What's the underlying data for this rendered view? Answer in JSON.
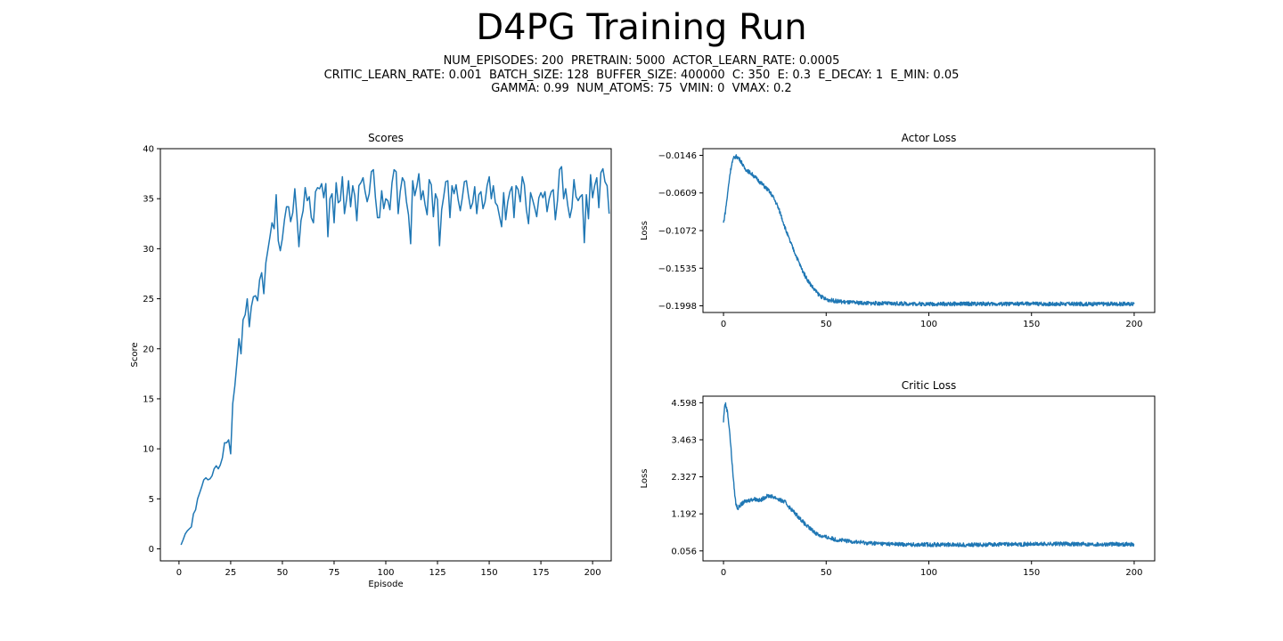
{
  "figure": {
    "title": "D4PG Training Run",
    "subtitle_lines": [
      "NUM_EPISODES: 200  PRETRAIN: 5000  ACTOR_LEARN_RATE: 0.0005",
      "CRITIC_LEARN_RATE: 0.001  BATCH_SIZE: 128  BUFFER_SIZE: 400000  C: 350  E: 0.3  E_DECAY: 1  E_MIN: 0.05",
      "GAMMA: 0.99  NUM_ATOMS: 75  VMIN: 0  VMAX: 0.2"
    ],
    "line_color": "#1f77b4"
  },
  "chart_data": [
    {
      "id": "scores",
      "type": "line",
      "title": "Scores",
      "xlabel": "Episode",
      "ylabel": "Score",
      "xlim": [
        -9,
        209
      ],
      "ylim": [
        -1.2,
        40
      ],
      "xticks": [
        0,
        25,
        50,
        75,
        100,
        125,
        150,
        175,
        200
      ],
      "yticks": [
        0,
        5,
        10,
        15,
        20,
        25,
        30,
        35,
        40
      ],
      "grid": false,
      "series": [
        {
          "x_start": 1,
          "x_step": 1,
          "values": [
            0.4,
            0.9,
            1.5,
            1.8,
            2.0,
            2.2,
            3.5,
            3.9,
            5.0,
            5.6,
            6.2,
            6.9,
            7.1,
            6.9,
            7.0,
            7.3,
            8.0,
            8.3,
            8.0,
            8.4,
            9.1,
            10.6,
            10.6,
            10.9,
            9.5,
            14.5,
            16.3,
            18.6,
            21.0,
            19.5,
            22.9,
            23.4,
            25.0,
            22.2,
            24.2,
            25.2,
            25.3,
            24.8,
            26.9,
            27.6,
            25.5,
            28.6,
            29.9,
            31.2,
            32.6,
            32.0,
            35.4,
            30.8,
            29.8,
            31.0,
            32.9,
            34.2,
            34.2,
            32.7,
            33.6,
            36.0,
            33.3,
            30.2,
            32.8,
            33.8,
            36.1,
            34.8,
            35.2,
            33.1,
            32.6,
            35.7,
            36.1,
            36.0,
            36.5,
            35.1,
            36.5,
            31.2,
            35.0,
            35.5,
            32.6,
            36.6,
            34.6,
            34.8,
            37.2,
            33.5,
            34.9,
            36.8,
            34.2,
            36.3,
            35.3,
            32.8,
            36.3,
            36.6,
            37.1,
            35.7,
            34.7,
            35.5,
            37.7,
            37.9,
            35.1,
            33.1,
            33.1,
            35.8,
            34.0,
            35.0,
            34.8,
            33.9,
            36.6,
            37.9,
            37.7,
            33.5,
            35.7,
            37.1,
            36.7,
            34.7,
            33.4,
            30.5,
            36.8,
            35.3,
            36.2,
            37.5,
            34.9,
            35.8,
            34.4,
            33.4,
            36.9,
            36.4,
            33.2,
            35.5,
            34.9,
            30.3,
            33.9,
            35.2,
            36.7,
            36.8,
            33.1,
            36.3,
            35.5,
            36.4,
            34.9,
            33.8,
            35.1,
            36.7,
            36.8,
            35.3,
            34.0,
            34.6,
            36.2,
            33.5,
            35.4,
            35.7,
            34.0,
            34.7,
            36.3,
            37.2,
            35.0,
            36.3,
            34.6,
            34.3,
            33.2,
            32.2,
            35.6,
            32.9,
            34.7,
            35.7,
            36.2,
            33.1,
            36.3,
            35.9,
            34.7,
            37.2,
            36.4,
            33.9,
            32.5,
            35.6,
            34.9,
            34.1,
            33.2,
            35.1,
            35.6,
            35.1,
            35.7,
            33.7,
            35.0,
            35.7,
            35.9,
            32.9,
            34.8,
            37.9,
            38.2,
            35.0,
            36.0,
            34.3,
            33.1,
            34.1,
            36.9,
            35.2,
            34.8,
            35.2,
            35.4,
            30.6,
            35.4,
            33.0,
            37.4,
            35.1,
            36.3,
            37.1,
            34.1,
            37.6,
            38.0,
            36.7,
            36.3,
            33.5
          ]
        }
      ]
    },
    {
      "id": "actor-loss",
      "type": "line",
      "title": "Actor Loss",
      "xlabel": "",
      "ylabel": "Loss",
      "xlim": [
        -10,
        210
      ],
      "ylim": [
        -0.208,
        -0.0064
      ],
      "xticks": [
        0,
        50,
        100,
        150,
        200
      ],
      "yticks": [
        -0.0146,
        -0.0609,
        -0.1072,
        -0.1535,
        -0.1998
      ],
      "ytick_labels": [
        "−0.0146",
        "−0.0609",
        "−0.1072",
        "−0.1535",
        "−0.1998"
      ],
      "grid": false,
      "series": [
        {
          "x": [
            0,
            1,
            2,
            3,
            4,
            5,
            6,
            7,
            8,
            9,
            10,
            12,
            14,
            16,
            18,
            20,
            22,
            24,
            26,
            28,
            30,
            32,
            34,
            36,
            38,
            40,
            42,
            44,
            46,
            48,
            50,
            55,
            60,
            70,
            80,
            90,
            100,
            110,
            120,
            130,
            140,
            150,
            160,
            170,
            180,
            190,
            200
          ],
          "values": [
            -0.098,
            -0.082,
            -0.062,
            -0.04,
            -0.025,
            -0.018,
            -0.016,
            -0.017,
            -0.02,
            -0.024,
            -0.03,
            -0.034,
            -0.038,
            -0.043,
            -0.048,
            -0.053,
            -0.058,
            -0.065,
            -0.075,
            -0.088,
            -0.104,
            -0.118,
            -0.13,
            -0.142,
            -0.154,
            -0.164,
            -0.172,
            -0.179,
            -0.185,
            -0.189,
            -0.192,
            -0.194,
            -0.1955,
            -0.1965,
            -0.197,
            -0.1972,
            -0.1975,
            -0.1975,
            -0.1972,
            -0.1975,
            -0.1975,
            -0.1972,
            -0.1975,
            -0.1975,
            -0.1975,
            -0.1975,
            -0.1975
          ]
        }
      ]
    },
    {
      "id": "critic-loss",
      "type": "line",
      "title": "Critic Loss",
      "xlabel": "",
      "ylabel": "Loss",
      "xlim": [
        -10,
        210
      ],
      "ylim": [
        -0.25,
        4.8
      ],
      "xticks": [
        0,
        50,
        100,
        150,
        200
      ],
      "yticks": [
        0.056,
        1.192,
        2.327,
        3.463,
        4.598
      ],
      "ytick_labels": [
        "0.056",
        "1.192",
        "2.327",
        "3.463",
        "4.598"
      ],
      "grid": false,
      "series": [
        {
          "x": [
            0,
            0.5,
            1,
            2,
            3,
            4,
            5,
            6,
            7,
            8,
            10,
            12,
            15,
            18,
            20,
            22,
            25,
            28,
            30,
            32,
            35,
            38,
            40,
            42,
            45,
            48,
            50,
            55,
            60,
            65,
            70,
            80,
            90,
            100,
            110,
            120,
            130,
            140,
            150,
            160,
            170,
            180,
            190,
            200
          ],
          "values": [
            4.0,
            4.5,
            4.55,
            4.3,
            3.7,
            2.9,
            2.1,
            1.5,
            1.35,
            1.45,
            1.55,
            1.6,
            1.65,
            1.6,
            1.7,
            1.75,
            1.7,
            1.6,
            1.55,
            1.4,
            1.2,
            1.0,
            0.85,
            0.75,
            0.6,
            0.5,
            0.48,
            0.4,
            0.36,
            0.33,
            0.3,
            0.27,
            0.25,
            0.25,
            0.25,
            0.24,
            0.25,
            0.26,
            0.26,
            0.27,
            0.27,
            0.26,
            0.26,
            0.26
          ]
        }
      ]
    }
  ]
}
